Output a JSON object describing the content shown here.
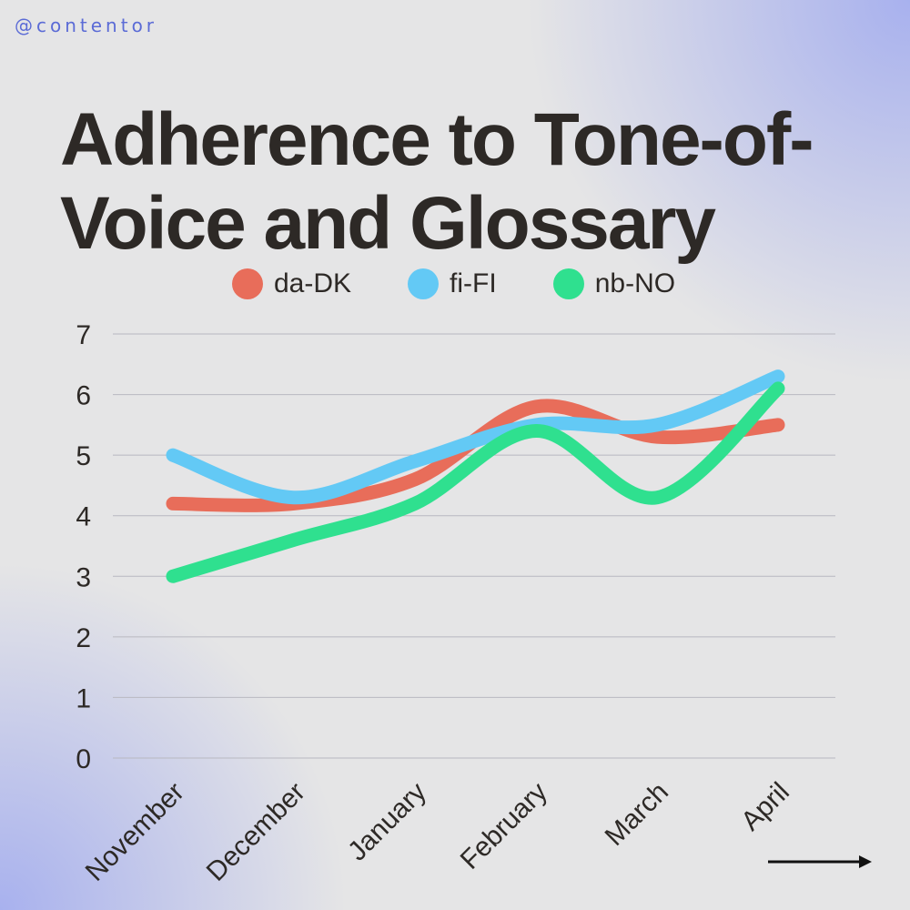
{
  "handle": "@contentor",
  "chart_data": {
    "type": "line",
    "title": "Adherence to Tone-of-Voice and Glossary",
    "categories": [
      "November",
      "December",
      "January",
      "February",
      "March",
      "April"
    ],
    "yticks": [
      "0",
      "1",
      "2",
      "3",
      "4",
      "5",
      "6",
      "7"
    ],
    "ylim": [
      0,
      7
    ],
    "grid": true,
    "legend_position": "top",
    "series": [
      {
        "name": "da-DK",
        "color": "#e86d5a",
        "values": [
          4.2,
          4.2,
          4.6,
          5.8,
          5.3,
          5.5
        ]
      },
      {
        "name": "fi-FI",
        "color": "#63c9f5",
        "values": [
          5.0,
          4.3,
          4.9,
          5.5,
          5.5,
          6.3
        ]
      },
      {
        "name": "nb-NO",
        "color": "#2fe08f",
        "values": [
          3.0,
          3.6,
          4.2,
          5.4,
          4.3,
          6.1
        ]
      }
    ]
  },
  "colors": {
    "title": "#2d2926",
    "handle": "#5b6bd6",
    "grid": "#b8b8c0",
    "accent": "#a9b2ef"
  }
}
